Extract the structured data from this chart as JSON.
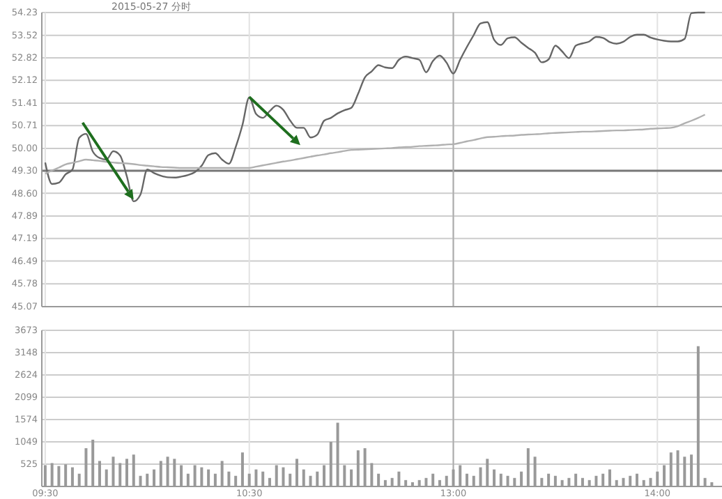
{
  "chart_data": [
    {
      "type": "line",
      "title": "2015-05-27 分时",
      "categories": [
        "09:30",
        null,
        null,
        null,
        null,
        null,
        null,
        null,
        null,
        null,
        null,
        null,
        null,
        null,
        null,
        null,
        null,
        null,
        null,
        null,
        null,
        null,
        null,
        null,
        null,
        null,
        null,
        null,
        null,
        null,
        "10:30",
        null,
        null,
        null,
        null,
        null,
        null,
        null,
        null,
        null,
        null,
        null,
        null,
        null,
        null,
        null,
        null,
        null,
        null,
        null,
        null,
        null,
        null,
        null,
        null,
        null,
        null,
        null,
        null,
        null,
        "13:00",
        null,
        null,
        null,
        null,
        null,
        null,
        null,
        null,
        null,
        null,
        null,
        null,
        null,
        null,
        null,
        null,
        null,
        null,
        null,
        null,
        null,
        null,
        null,
        null,
        null,
        null,
        null,
        null,
        null,
        "14:00",
        null,
        null,
        null,
        null,
        null,
        null,
        null,
        null,
        null
      ],
      "ylim": [
        45.07,
        54.23
      ],
      "yticks": [
        45.07,
        45.78,
        46.49,
        47.19,
        47.89,
        {
          "value": 48.6,
          "label": "48.60"
        },
        {
          "value": 49.3,
          "label": "49.30"
        },
        {
          "value": 50,
          "label": "50.00"
        },
        50.71,
        51.41,
        52.12,
        52.82,
        53.52,
        54.23
      ],
      "tick_labels": "y",
      "grid": true,
      "ref_lines": [
        {
          "axis": "y",
          "value": 49.3,
          "color": "#777777"
        },
        {
          "axis": "x",
          "value": "13:00",
          "color": "#aaaaaa"
        }
      ],
      "series": [
        {
          "color": "#666666",
          "values": [
            49.56,
            48.89,
            48.93,
            49.19,
            49.34,
            50.33,
            50.45,
            49.9,
            49.7,
            49.65,
            49.91,
            49.78,
            49.13,
            48.35,
            48.56,
            49.34,
            49.23,
            49.15,
            49.1,
            49.09,
            49.12,
            49.17,
            49.26,
            49.46,
            49.79,
            49.85,
            49.65,
            49.52,
            50.04,
            50.73,
            51.59,
            51.07,
            50.95,
            51.16,
            51.33,
            51.2,
            50.87,
            50.64,
            50.64,
            50.34,
            50.43,
            50.86,
            50.95,
            51.09,
            51.19,
            51.26,
            51.7,
            52.21,
            52.4,
            52.59,
            52.52,
            52.5,
            52.76,
            52.86,
            52.81,
            52.76,
            52.37,
            52.72,
            52.89,
            52.67,
            52.33,
            52.76,
            53.16,
            53.53,
            53.89,
            53.93,
            53.38,
            53.22,
            53.43,
            53.46,
            53.29,
            53.13,
            52.98,
            52.68,
            52.77,
            53.2,
            53.02,
            52.81,
            53.2,
            53.27,
            53.33,
            53.47,
            53.44,
            53.31,
            53.26,
            53.32,
            53.47,
            53.54,
            53.54,
            53.45,
            53.39,
            53.35,
            53.33,
            53.33,
            53.41,
            54.21,
            54.23,
            54.23,
            null,
            null
          ]
        },
        {
          "color": "#b0b0b0",
          "values": [
            49.21,
            49.31,
            49.4,
            49.5,
            49.55,
            49.6,
            49.65,
            49.63,
            49.61,
            49.58,
            49.56,
            49.54,
            49.53,
            49.51,
            49.48,
            49.46,
            49.44,
            49.42,
            49.41,
            49.4,
            49.39,
            49.39,
            49.39,
            49.39,
            49.39,
            49.39,
            49.39,
            49.39,
            49.39,
            49.39,
            49.39,
            49.43,
            49.47,
            49.51,
            49.55,
            49.59,
            49.62,
            49.66,
            49.7,
            49.74,
            49.78,
            49.81,
            49.85,
            49.88,
            49.92,
            49.95,
            49.96,
            49.97,
            49.98,
            49.99,
            50.0,
            50.01,
            50.03,
            50.04,
            50.05,
            50.07,
            50.08,
            50.09,
            50.1,
            50.12,
            50.13,
            50.17,
            50.22,
            50.26,
            50.31,
            50.35,
            50.36,
            50.38,
            50.39,
            50.4,
            50.42,
            50.43,
            50.44,
            50.45,
            50.47,
            50.48,
            50.49,
            50.5,
            50.51,
            50.52,
            50.52,
            50.53,
            50.54,
            50.55,
            50.56,
            50.56,
            50.57,
            50.58,
            50.59,
            50.61,
            50.62,
            50.63,
            50.64,
            50.69,
            50.78,
            50.86,
            50.95,
            51.05,
            null,
            null
          ]
        }
      ]
    },
    {
      "type": "bar",
      "categories": [
        "09:30",
        null,
        null,
        null,
        null,
        null,
        null,
        null,
        null,
        null,
        null,
        null,
        null,
        null,
        null,
        null,
        null,
        null,
        null,
        null,
        null,
        null,
        null,
        null,
        null,
        null,
        null,
        null,
        null,
        null,
        "10:30",
        null,
        null,
        null,
        null,
        null,
        null,
        null,
        null,
        null,
        null,
        null,
        null,
        null,
        null,
        null,
        null,
        null,
        null,
        null,
        null,
        null,
        null,
        null,
        null,
        null,
        null,
        null,
        null,
        null,
        "13:00",
        null,
        null,
        null,
        null,
        null,
        null,
        null,
        null,
        null,
        null,
        null,
        null,
        null,
        null,
        null,
        null,
        null,
        null,
        null,
        null,
        null,
        null,
        null,
        null,
        null,
        null,
        null,
        null,
        null,
        "14:00",
        null,
        null,
        null,
        null,
        null,
        null,
        null,
        null,
        null
      ],
      "ylim": [
        0,
        3673
      ],
      "yticks": [
        525,
        1049,
        1574,
        2099,
        2624,
        3148,
        3673
      ],
      "grid": true,
      "color": "#999999",
      "ref_lines": [
        {
          "axis": "x",
          "value": "13:00",
          "color": "#aaaaaa"
        }
      ],
      "values": [
        500,
        550,
        480,
        520,
        450,
        300,
        900,
        1100,
        600,
        400,
        700,
        550,
        650,
        750,
        250,
        300,
        400,
        600,
        700,
        650,
        500,
        300,
        500,
        450,
        400,
        300,
        600,
        350,
        250,
        800,
        300,
        400,
        350,
        200,
        500,
        450,
        300,
        650,
        400,
        250,
        350,
        500,
        1050,
        1500,
        500,
        400,
        850,
        900,
        550,
        300,
        150,
        200,
        350,
        150,
        100,
        150,
        200,
        300,
        150,
        250,
        400,
        500,
        300,
        250,
        450,
        650,
        400,
        300,
        250,
        200,
        350,
        900,
        700,
        200,
        300,
        250,
        150,
        200,
        300,
        200,
        150,
        250,
        300,
        400,
        150,
        200,
        250,
        300,
        150,
        200,
        350,
        500,
        800,
        850,
        700,
        750,
        3300,
        200,
        100,
        null
      ]
    }
  ]
}
